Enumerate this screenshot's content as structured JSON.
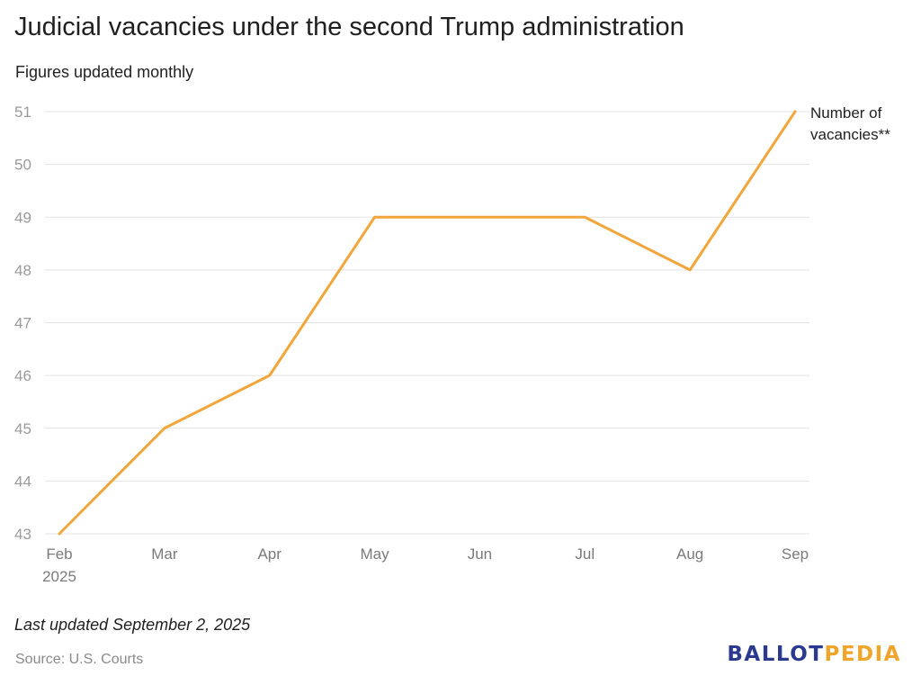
{
  "header": {
    "title": "Judicial vacancies under the second Trump administration",
    "subtitle": "Figures updated monthly"
  },
  "footer": {
    "last_updated": "Last updated September 2, 2025",
    "source": "Source: U.S. Courts",
    "logo_part1": "BALLOT",
    "logo_part2": "PEDIA",
    "logo_colors": {
      "part1": "#2b3a8f",
      "part2": "#f0a52a"
    }
  },
  "chart_data": {
    "type": "line",
    "categories": [
      "Feb",
      "Mar",
      "Apr",
      "May",
      "Jun",
      "Jul",
      "Aug",
      "Sep"
    ],
    "category_sublabels": [
      "2025",
      "",
      "",
      "",
      "",
      "",
      "",
      ""
    ],
    "series": [
      {
        "name": "Number of vacancies**",
        "color": "#f0a63a",
        "values": [
          43,
          45,
          46,
          49,
          49,
          49,
          48,
          51
        ]
      }
    ],
    "yticks": [
      43,
      44,
      45,
      46,
      47,
      48,
      49,
      50,
      51
    ],
    "ylim": [
      43,
      51
    ],
    "grid": true,
    "legend": "end-of-line label",
    "gridline_color": "#e3e3e3"
  }
}
